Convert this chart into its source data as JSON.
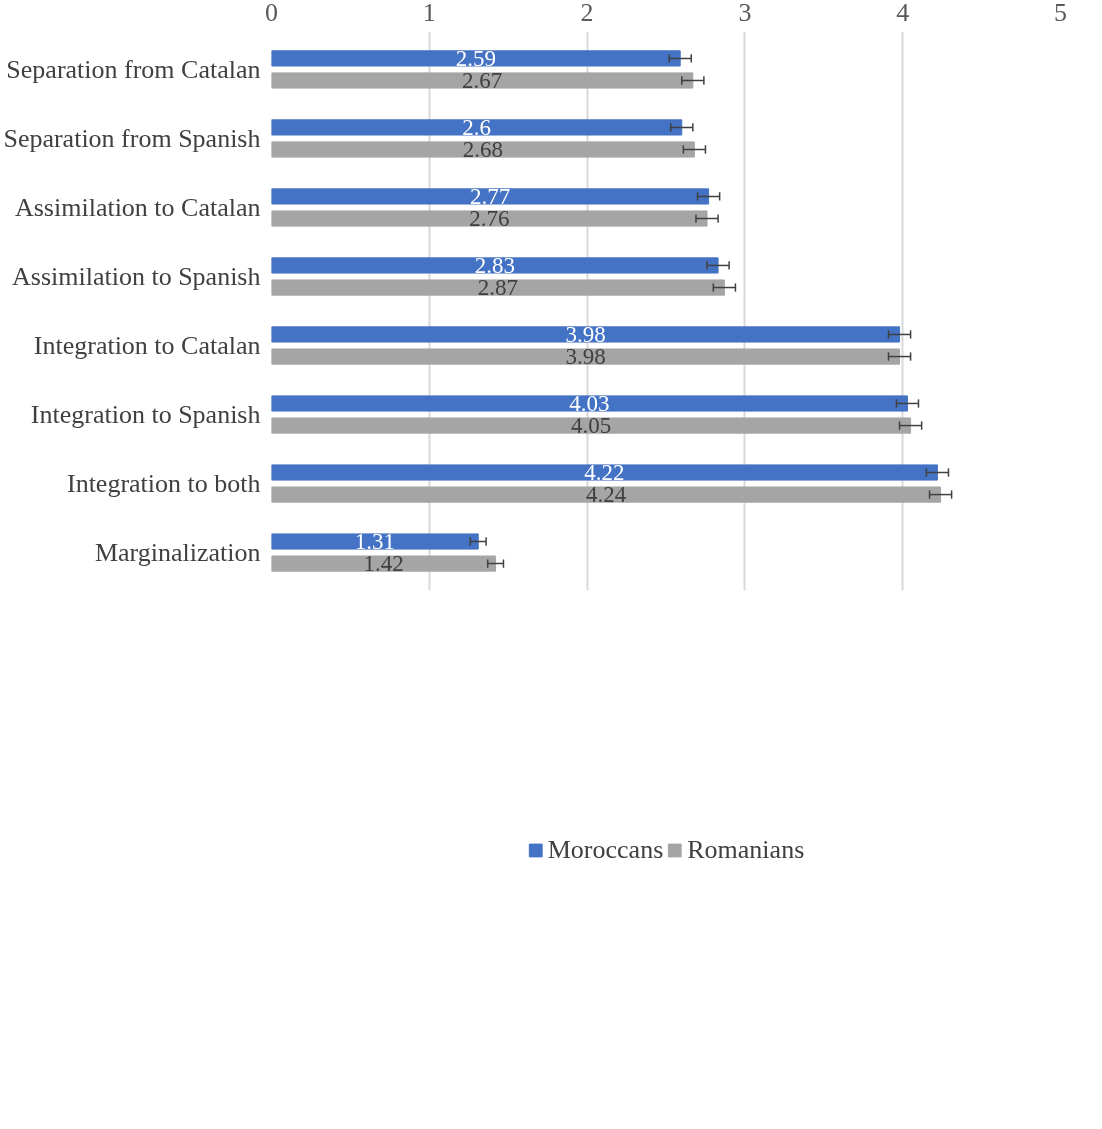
{
  "chart_data": {
    "type": "bar",
    "orientation": "horizontal",
    "categories": [
      "Separation from Catalan",
      "Separation from Spanish",
      "Assimilation to Catalan",
      "Assimilation to Spanish",
      "Integration to Catalan",
      "Integration to Spanish",
      "Integration to both",
      "Marginalization"
    ],
    "series": [
      {
        "name": "Moroccans",
        "color": "#4472c4",
        "values": [
          2.59,
          2.6,
          2.77,
          2.83,
          3.98,
          4.03,
          4.22,
          1.31
        ],
        "errors": [
          0.07,
          0.07,
          0.07,
          0.07,
          0.07,
          0.07,
          0.07,
          0.05
        ]
      },
      {
        "name": "Romanians",
        "color": "#a5a5a5",
        "values": [
          2.67,
          2.68,
          2.76,
          2.87,
          3.98,
          4.05,
          4.24,
          1.42
        ],
        "errors": [
          0.07,
          0.07,
          0.07,
          0.07,
          0.07,
          0.07,
          0.07,
          0.05
        ]
      }
    ],
    "xlim": [
      0,
      5
    ],
    "xticks": [
      0,
      1,
      2,
      3,
      4,
      5
    ],
    "grid": "x",
    "legend": "bottom",
    "data_labels": true
  }
}
